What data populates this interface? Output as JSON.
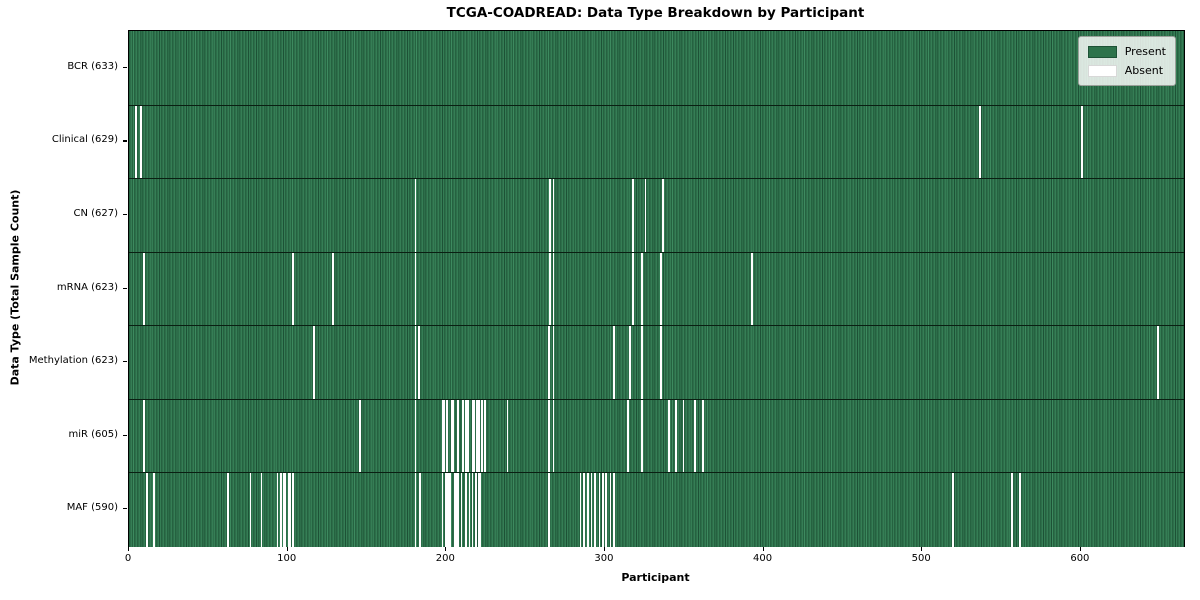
{
  "chart_data": {
    "type": "heatmap",
    "title": "TCGA-COADREAD: Data Type Breakdown by Participant",
    "xlabel": "Participant",
    "ylabel": "Data Type (Total Sample Count)",
    "legend_position": "upper right",
    "legend": [
      {
        "label": "Present",
        "color": "#2d734b"
      },
      {
        "label": "Absent",
        "color": "#ffffff"
      }
    ],
    "colors": {
      "present": "#2d734b",
      "present_edge": "#1d5236",
      "present_light": "#3d8a5f",
      "absent": "#ffffff",
      "axis": "#000000"
    },
    "x_ticks": [
      0,
      100,
      200,
      300,
      400,
      500,
      600
    ],
    "x_max": 665,
    "grid": false,
    "rows": [
      {
        "name": "BCR",
        "label": "BCR (633)",
        "total_samples": 633,
        "absent_participants": []
      },
      {
        "name": "Clinical",
        "label": "Clinical (629)",
        "total_samples": 629,
        "absent_participants": [
          4,
          7,
          536,
          600
        ]
      },
      {
        "name": "CN",
        "label": "CN (627)",
        "total_samples": 627,
        "absent_participants": [
          180,
          265,
          267,
          317,
          325,
          336
        ]
      },
      {
        "name": "mRNA",
        "label": "mRNA (623)",
        "total_samples": 623,
        "absent_participants": [
          9,
          103,
          128,
          180,
          265,
          267,
          317,
          323,
          335,
          392
        ]
      },
      {
        "name": "Methylation",
        "label": "Methylation (623)",
        "total_samples": 623,
        "absent_participants": [
          116,
          180,
          182,
          264,
          267,
          305,
          315,
          323,
          335,
          648
        ]
      },
      {
        "name": "miR",
        "label": "miR (605)",
        "total_samples": 605,
        "absent_participants": [
          9,
          145,
          180,
          197,
          198,
          200,
          203,
          204,
          207,
          210,
          212,
          213,
          216,
          217,
          219,
          220,
          222,
          224,
          238,
          264,
          267,
          314,
          323,
          340,
          344,
          349,
          356,
          361
        ]
      },
      {
        "name": "MAF",
        "label": "MAF (590)",
        "total_samples": 590,
        "absent_participants": [
          11,
          15,
          62,
          76,
          83,
          93,
          95,
          97,
          98,
          100,
          101,
          103,
          180,
          183,
          197,
          199,
          200,
          201,
          202,
          205,
          206,
          207,
          209,
          212,
          214,
          216,
          218,
          220,
          221,
          264,
          284,
          286,
          289,
          291,
          293,
          296,
          298,
          300,
          303,
          305,
          519,
          556,
          561
        ]
      }
    ]
  }
}
